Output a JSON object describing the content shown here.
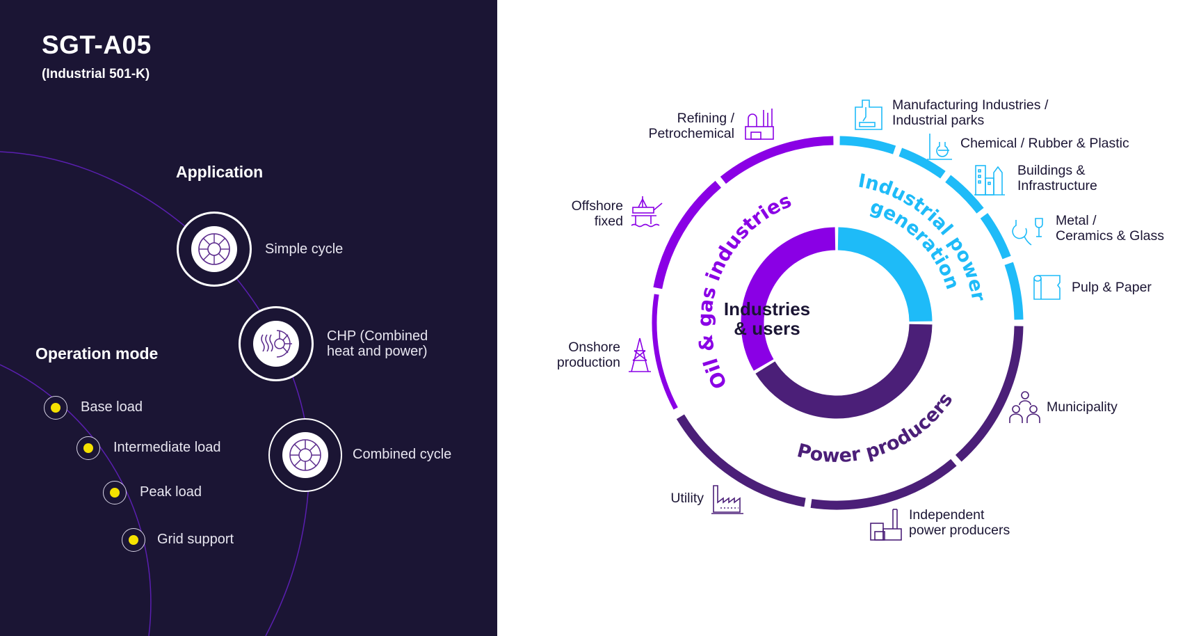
{
  "header": {
    "title": "SGT-A05",
    "subtitle": "(Industrial 501-K)"
  },
  "application": {
    "heading": "Application",
    "items": [
      {
        "label_line1": "Simple cycle",
        "label_line2": "",
        "icon": "turbine-icon"
      },
      {
        "label_line1": "CHP (Combined",
        "label_line2": "heat and power)",
        "icon": "turbine-heat-icon"
      },
      {
        "label_line1": "Combined cycle",
        "label_line2": "",
        "icon": "turbine-cycle-icon"
      }
    ]
  },
  "operation_mode": {
    "heading": "Operation mode",
    "items": [
      "Base load",
      "Intermediate load",
      "Peak load",
      "Grid support"
    ]
  },
  "diagram": {
    "center_line1": "Industries",
    "center_line2": "& users",
    "sectors": {
      "oil_gas": "Oil & gas industries",
      "industrial_line1": "Industrial power",
      "industrial_line2": "generation",
      "power": "Power producers"
    },
    "labels": {
      "refining": [
        "Refining /",
        "Petrochemical"
      ],
      "manufacturing": [
        "Manufacturing Industries /",
        "Industrial parks"
      ],
      "chemical": [
        "Chemical / Rubber & Plastic"
      ],
      "buildings": [
        "Buildings &",
        "Infrastructure"
      ],
      "metal": [
        "Metal /",
        "Ceramics & Glass"
      ],
      "pulp": [
        "Pulp & Paper"
      ],
      "municipality": [
        "Municipality"
      ],
      "independent": [
        "Independent",
        "power producers"
      ],
      "utility": [
        "Utility"
      ],
      "onshore": [
        "Onshore",
        "production"
      ],
      "offshore": [
        "Offshore",
        "fixed"
      ]
    }
  },
  "colors": {
    "background_dark": "#1b1534",
    "oil_gas": "#8a00e5",
    "industrial": "#1ebbf8",
    "power": "#4b1f78",
    "dot": "#f5e100",
    "text_dark": "#1b1534"
  }
}
